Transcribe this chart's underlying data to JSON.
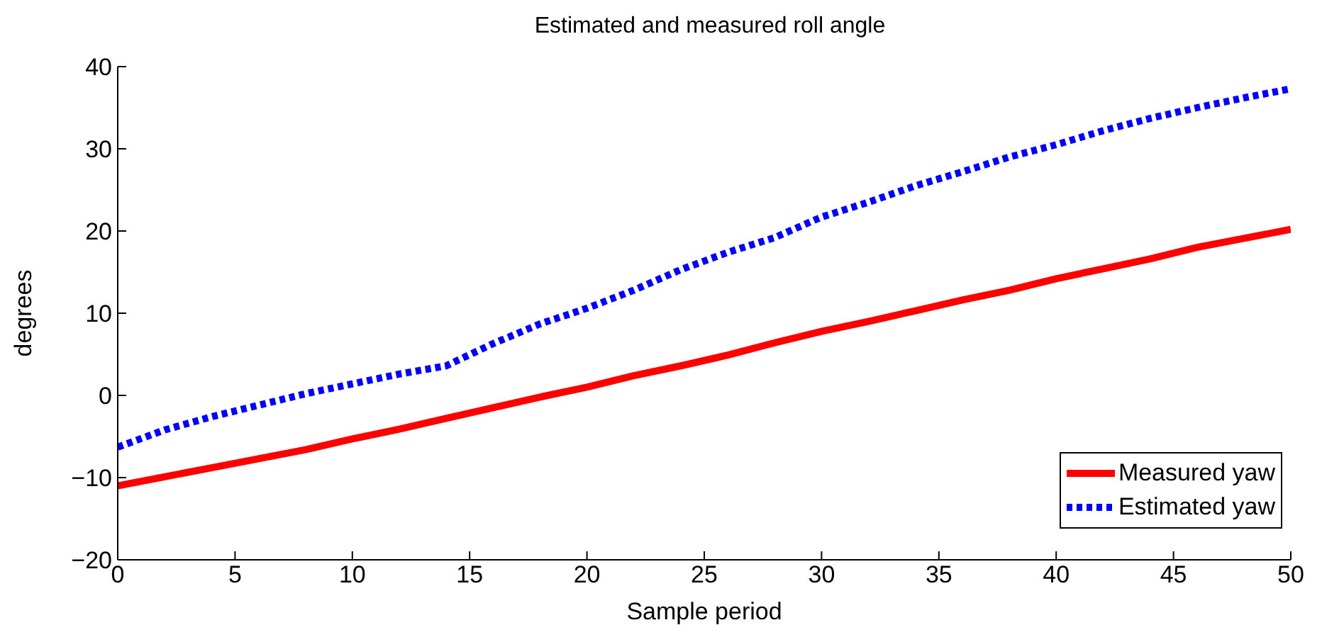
{
  "chart_data": {
    "type": "line",
    "title": "Estimated and measured roll angle",
    "xlabel": "Sample period",
    "ylabel": "degrees",
    "x": [
      0,
      2,
      4,
      6,
      8,
      10,
      12,
      14,
      16,
      18,
      20,
      22,
      24,
      26,
      28,
      30,
      32,
      34,
      36,
      38,
      40,
      42,
      44,
      46,
      48,
      50
    ],
    "series": [
      {
        "name": "Measured yaw",
        "color": "#ff0000",
        "line_style": "solid",
        "values": [
          -11,
          -9.9,
          -8.8,
          -7.7,
          -6.6,
          -5.3,
          -4.1,
          -2.8,
          -1.5,
          -0.2,
          1.0,
          2.4,
          3.6,
          4.9,
          6.4,
          7.8,
          9.0,
          10.3,
          11.6,
          12.8,
          14.2,
          15.4,
          16.6,
          18.0,
          19.1,
          20.2
        ]
      },
      {
        "name": "Estimated yaw",
        "color": "#0000ff",
        "line_style": "dotted",
        "values": [
          -6.3,
          -4.2,
          -2.6,
          -1.2,
          0.2,
          1.4,
          2.6,
          3.6,
          6.3,
          8.7,
          10.6,
          12.8,
          15.3,
          17.4,
          19.2,
          21.7,
          23.5,
          25.5,
          27.2,
          29.0,
          30.5,
          32.2,
          33.7,
          35.0,
          36.2,
          37.3
        ]
      }
    ],
    "xlim": [
      0,
      50
    ],
    "xticks": [
      0,
      5,
      10,
      15,
      20,
      25,
      30,
      35,
      40,
      45,
      50
    ],
    "ylim": [
      -20,
      40
    ],
    "yticks": [
      -20,
      -10,
      0,
      10,
      20,
      30,
      40
    ],
    "grid": false,
    "legend": "bottom right",
    "marker": "none"
  }
}
